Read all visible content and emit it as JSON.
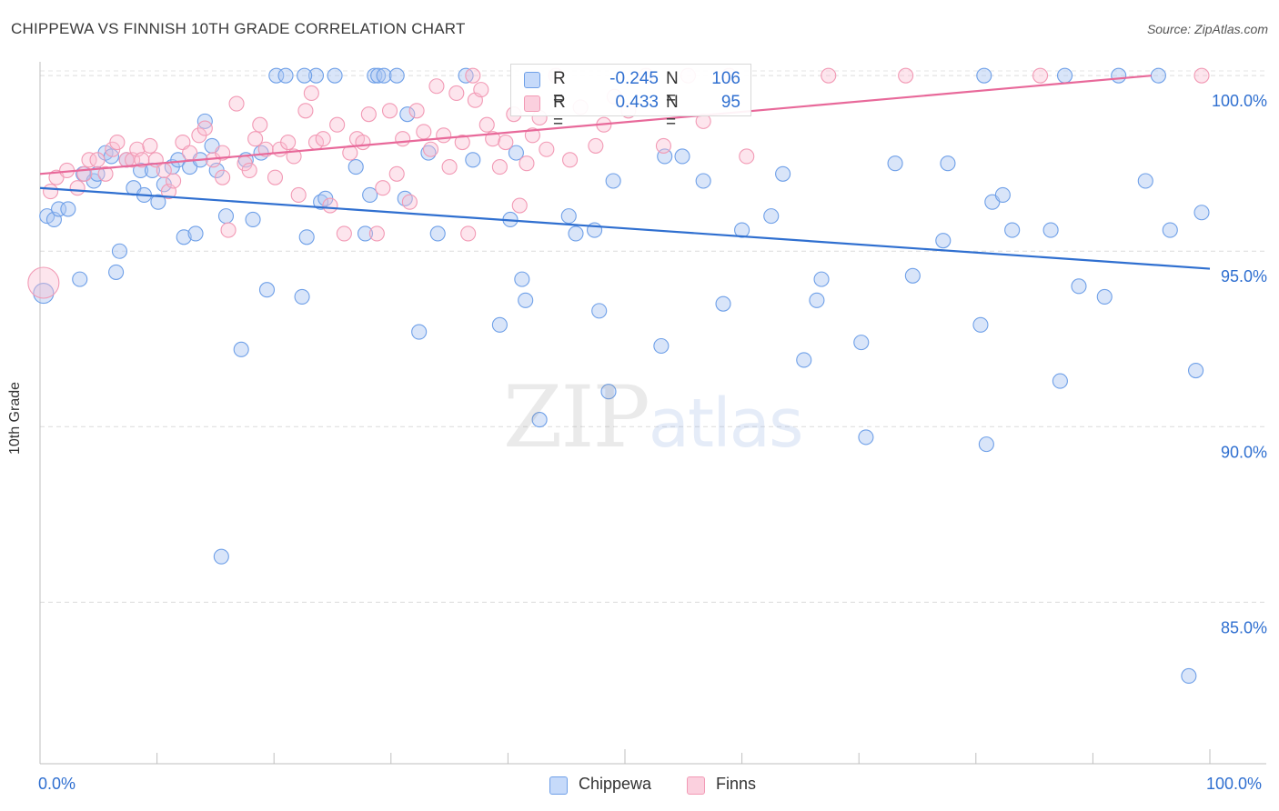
{
  "header": {
    "title": "CHIPPEWA VS FINNISH 10TH GRADE CORRELATION CHART",
    "source": "Source: ZipAtlas.com"
  },
  "watermark": {
    "zip": "ZIP",
    "atlas": "atlas"
  },
  "legend_top": {
    "rows": [
      {
        "r_label": "R =",
        "r_value": "-0.245",
        "n_label": "N =",
        "n_value": "106",
        "color": "#6fa0e8"
      },
      {
        "r_label": "R =",
        "r_value": "0.433",
        "n_label": "N =",
        "n_value": "95",
        "color": "#f29ab5"
      }
    ]
  },
  "legend_bottom": {
    "items": [
      {
        "label": "Chippewa",
        "color": "#6fa0e8"
      },
      {
        "label": "Finns",
        "color": "#f29ab5"
      }
    ]
  },
  "chart_data": {
    "type": "scatter",
    "title": "CHIPPEWA VS FINNISH 10TH GRADE CORRELATION CHART",
    "xlabel": "",
    "ylabel": "10th Grade",
    "xlim": [
      0,
      100
    ],
    "ylim": [
      80.4,
      100.6
    ],
    "x_tick_labels": [
      "0.0%",
      "100.0%"
    ],
    "y_ticks": [
      {
        "value": 100,
        "label": "100.0%"
      },
      {
        "value": 95,
        "label": "95.0%"
      },
      {
        "value": 90,
        "label": "90.0%"
      },
      {
        "value": 85,
        "label": "85.0%"
      }
    ],
    "grid": "horizontal dashed",
    "legend_position": "bottom",
    "series": [
      {
        "name": "Chippewa",
        "color": "#6fa0e8",
        "r": -0.245,
        "n": 106,
        "trend": {
          "x": [
            0,
            100
          ],
          "y": [
            96.8,
            94.5
          ]
        },
        "points": [
          [
            0.3,
            93.8
          ],
          [
            0.6,
            96.0
          ],
          [
            1.2,
            95.9
          ],
          [
            1.6,
            96.2
          ],
          [
            2.4,
            96.2
          ],
          [
            3.4,
            94.2
          ],
          [
            3.7,
            97.2
          ],
          [
            4.6,
            97.0
          ],
          [
            4.9,
            97.2
          ],
          [
            5.6,
            97.8
          ],
          [
            6.1,
            97.7
          ],
          [
            6.5,
            94.4
          ],
          [
            6.8,
            95.0
          ],
          [
            7.4,
            97.6
          ],
          [
            8.0,
            96.8
          ],
          [
            8.6,
            97.3
          ],
          [
            8.9,
            96.6
          ],
          [
            9.6,
            97.3
          ],
          [
            10.1,
            96.4
          ],
          [
            10.6,
            96.9
          ],
          [
            11.3,
            97.4
          ],
          [
            11.8,
            97.6
          ],
          [
            12.3,
            95.4
          ],
          [
            12.8,
            97.4
          ],
          [
            13.3,
            95.5
          ],
          [
            13.7,
            97.6
          ],
          [
            14.1,
            98.7
          ],
          [
            14.7,
            98.0
          ],
          [
            15.1,
            97.3
          ],
          [
            15.5,
            86.3
          ],
          [
            15.9,
            96.0
          ],
          [
            17.2,
            92.2
          ],
          [
            17.6,
            97.6
          ],
          [
            18.2,
            95.9
          ],
          [
            18.9,
            97.8
          ],
          [
            19.4,
            93.9
          ],
          [
            20.2,
            100.0
          ],
          [
            21.0,
            100.0
          ],
          [
            22.4,
            93.7
          ],
          [
            22.8,
            95.4
          ],
          [
            23.6,
            100.0
          ],
          [
            24.0,
            96.4
          ],
          [
            24.4,
            96.5
          ],
          [
            25.2,
            100.0
          ],
          [
            27.0,
            97.4
          ],
          [
            27.8,
            95.5
          ],
          [
            28.2,
            96.6
          ],
          [
            28.6,
            100.0
          ],
          [
            28.9,
            100.0
          ],
          [
            29.4,
            100.0
          ],
          [
            30.5,
            100.0
          ],
          [
            31.2,
            96.5
          ],
          [
            31.4,
            98.9
          ],
          [
            32.4,
            92.7
          ],
          [
            33.2,
            97.8
          ],
          [
            34.0,
            95.5
          ],
          [
            36.4,
            100.0
          ],
          [
            37.0,
            97.6
          ],
          [
            39.3,
            92.9
          ],
          [
            40.2,
            95.9
          ],
          [
            40.7,
            97.8
          ],
          [
            41.2,
            94.2
          ],
          [
            41.5,
            93.6
          ],
          [
            42.7,
            90.2
          ],
          [
            45.2,
            96.0
          ],
          [
            45.8,
            95.5
          ],
          [
            47.4,
            95.6
          ],
          [
            47.8,
            93.3
          ],
          [
            48.6,
            91.0
          ],
          [
            49.0,
            97.0
          ],
          [
            53.1,
            92.3
          ],
          [
            53.4,
            97.7
          ],
          [
            54.9,
            97.7
          ],
          [
            56.7,
            97.0
          ],
          [
            58.4,
            93.5
          ],
          [
            60.0,
            95.6
          ],
          [
            62.5,
            96.0
          ],
          [
            63.5,
            97.2
          ],
          [
            65.3,
            91.9
          ],
          [
            66.4,
            93.6
          ],
          [
            66.8,
            94.2
          ],
          [
            70.2,
            92.4
          ],
          [
            70.6,
            89.7
          ],
          [
            73.1,
            97.5
          ],
          [
            74.6,
            94.3
          ],
          [
            77.2,
            95.3
          ],
          [
            77.6,
            97.5
          ],
          [
            80.4,
            92.9
          ],
          [
            80.9,
            89.5
          ],
          [
            80.7,
            100.0
          ],
          [
            81.4,
            96.4
          ],
          [
            82.3,
            96.6
          ],
          [
            83.1,
            95.6
          ],
          [
            86.4,
            95.6
          ],
          [
            87.2,
            91.3
          ],
          [
            87.6,
            100.0
          ],
          [
            88.8,
            94.0
          ],
          [
            91.0,
            93.7
          ],
          [
            92.2,
            100.0
          ],
          [
            94.5,
            97.0
          ],
          [
            95.6,
            100.0
          ],
          [
            96.6,
            95.6
          ],
          [
            98.2,
            82.9
          ],
          [
            98.8,
            91.6
          ],
          [
            99.3,
            96.1
          ],
          [
            22.6,
            100.0
          ]
        ]
      },
      {
        "name": "Finns",
        "color": "#f29ab5",
        "r": 0.433,
        "n": 95,
        "trend": {
          "x": [
            0,
            95
          ],
          "y": [
            97.2,
            100.0
          ]
        },
        "points": [
          [
            0.3,
            94.1
          ],
          [
            0.9,
            96.7
          ],
          [
            1.4,
            97.1
          ],
          [
            2.3,
            97.3
          ],
          [
            3.2,
            96.8
          ],
          [
            3.8,
            97.2
          ],
          [
            4.2,
            97.6
          ],
          [
            4.9,
            97.6
          ],
          [
            5.6,
            97.2
          ],
          [
            6.2,
            97.9
          ],
          [
            6.6,
            98.1
          ],
          [
            7.4,
            97.6
          ],
          [
            7.9,
            97.6
          ],
          [
            8.3,
            97.9
          ],
          [
            8.7,
            97.6
          ],
          [
            9.4,
            98.0
          ],
          [
            9.9,
            97.6
          ],
          [
            10.6,
            97.3
          ],
          [
            11.0,
            96.7
          ],
          [
            11.4,
            97.0
          ],
          [
            12.2,
            98.1
          ],
          [
            12.8,
            97.8
          ],
          [
            13.6,
            98.3
          ],
          [
            14.1,
            98.5
          ],
          [
            14.8,
            97.6
          ],
          [
            15.6,
            97.8
          ],
          [
            16.1,
            95.6
          ],
          [
            16.8,
            99.2
          ],
          [
            17.5,
            97.5
          ],
          [
            17.9,
            97.3
          ],
          [
            18.4,
            98.2
          ],
          [
            18.8,
            98.6
          ],
          [
            19.3,
            97.9
          ],
          [
            20.1,
            97.1
          ],
          [
            20.5,
            97.9
          ],
          [
            21.2,
            98.1
          ],
          [
            21.7,
            97.7
          ],
          [
            22.1,
            96.6
          ],
          [
            22.7,
            99.0
          ],
          [
            23.2,
            99.5
          ],
          [
            23.6,
            98.1
          ],
          [
            24.2,
            98.2
          ],
          [
            24.8,
            96.3
          ],
          [
            25.4,
            98.6
          ],
          [
            26.0,
            95.5
          ],
          [
            26.5,
            97.8
          ],
          [
            27.1,
            98.2
          ],
          [
            27.6,
            98.1
          ],
          [
            28.1,
            98.9
          ],
          [
            28.8,
            95.5
          ],
          [
            29.3,
            96.8
          ],
          [
            29.9,
            99.0
          ],
          [
            30.5,
            97.2
          ],
          [
            31.0,
            98.2
          ],
          [
            31.6,
            96.4
          ],
          [
            32.2,
            99.0
          ],
          [
            32.8,
            98.4
          ],
          [
            33.4,
            97.9
          ],
          [
            33.9,
            99.7
          ],
          [
            34.5,
            98.3
          ],
          [
            35.0,
            97.4
          ],
          [
            35.6,
            99.5
          ],
          [
            36.1,
            98.1
          ],
          [
            36.6,
            95.5
          ],
          [
            37.2,
            99.3
          ],
          [
            37.7,
            99.6
          ],
          [
            38.2,
            98.6
          ],
          [
            38.7,
            98.2
          ],
          [
            39.3,
            97.4
          ],
          [
            39.8,
            98.1
          ],
          [
            40.5,
            98.9
          ],
          [
            41.0,
            96.3
          ],
          [
            41.6,
            97.5
          ],
          [
            42.1,
            98.3
          ],
          [
            42.7,
            98.8
          ],
          [
            43.3,
            97.9
          ],
          [
            44.1,
            100.0
          ],
          [
            45.3,
            97.6
          ],
          [
            46.2,
            99.1
          ],
          [
            47.5,
            98.0
          ],
          [
            48.2,
            98.6
          ],
          [
            49.1,
            99.4
          ],
          [
            50.3,
            99.0
          ],
          [
            51.8,
            100.0
          ],
          [
            53.3,
            98.0
          ],
          [
            55.4,
            100.0
          ],
          [
            56.7,
            98.7
          ],
          [
            58.9,
            100.0
          ],
          [
            60.4,
            97.7
          ],
          [
            67.4,
            100.0
          ],
          [
            74.0,
            100.0
          ],
          [
            85.5,
            100.0
          ],
          [
            99.3,
            100.0
          ],
          [
            37.0,
            100.0
          ],
          [
            15.6,
            97.1
          ]
        ]
      }
    ]
  }
}
